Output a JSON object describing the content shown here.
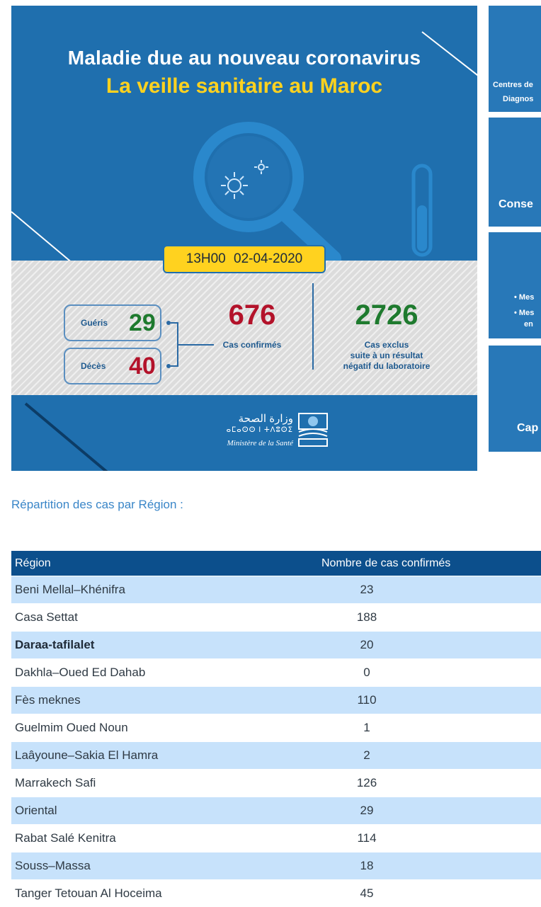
{
  "banner": {
    "title_line1": "Maladie due au nouveau coronavirus",
    "title_line2": "La veille sanitaire au Maroc",
    "time": "13H00",
    "date": "02-04-2020",
    "recovered_label": "Guéris",
    "recovered_value": "29",
    "deaths_label": "Décès",
    "deaths_value": "40",
    "confirmed_value": "676",
    "confirmed_label": "Cas confirmés",
    "excluded_value": "2726",
    "excluded_label_1": "Cas exclus",
    "excluded_label_2": "suite à un résultat",
    "excluded_label_3": "négatif du laboratoire",
    "ministry_arabic": "وزارة الصحة",
    "ministry_tifinagh": "ⴰⵎⴰⵙⵙ ⵏ ⵜⴷⵓⵙⵉ",
    "ministry_french": "Ministère de la Santé",
    "colors": {
      "background": "#1f6fae",
      "title_yellow": "#ffd21f",
      "green": "#1e7a2e",
      "red": "#b3122a"
    }
  },
  "side_cards": {
    "card1_line1": "Centres de",
    "card1_line2": "Diagnos",
    "card2_label": "Conse",
    "card3_item1": "• Mes",
    "card3_item2": "• Mes",
    "card3_item2b": "en",
    "card4_label": "Cap"
  },
  "section_title": "Répartition des cas par Région :",
  "table": {
    "headers": [
      "Région",
      "Nombre de cas confirmés"
    ],
    "rows": [
      {
        "region": "Beni Mellal–Khénifra",
        "cases": "23"
      },
      {
        "region": "Casa Settat",
        "cases": "188"
      },
      {
        "region": "Daraa-tafilalet",
        "cases": "20"
      },
      {
        "region": "Dakhla–Oued Ed Dahab",
        "cases": "0"
      },
      {
        "region": "Fès meknes",
        "cases": "110"
      },
      {
        "region": "Guelmim Oued Noun",
        "cases": "1"
      },
      {
        "region": "Laâyoune–Sakia El Hamra",
        "cases": "2"
      },
      {
        "region": "Marrakech Safi",
        "cases": "126"
      },
      {
        "region": "Oriental",
        "cases": "29"
      },
      {
        "region": "Rabat Salé Kenitra",
        "cases": "114"
      },
      {
        "region": "Souss–Massa",
        "cases": "18"
      },
      {
        "region": "Tanger Tetouan Al Hoceima",
        "cases": "45"
      }
    ]
  }
}
